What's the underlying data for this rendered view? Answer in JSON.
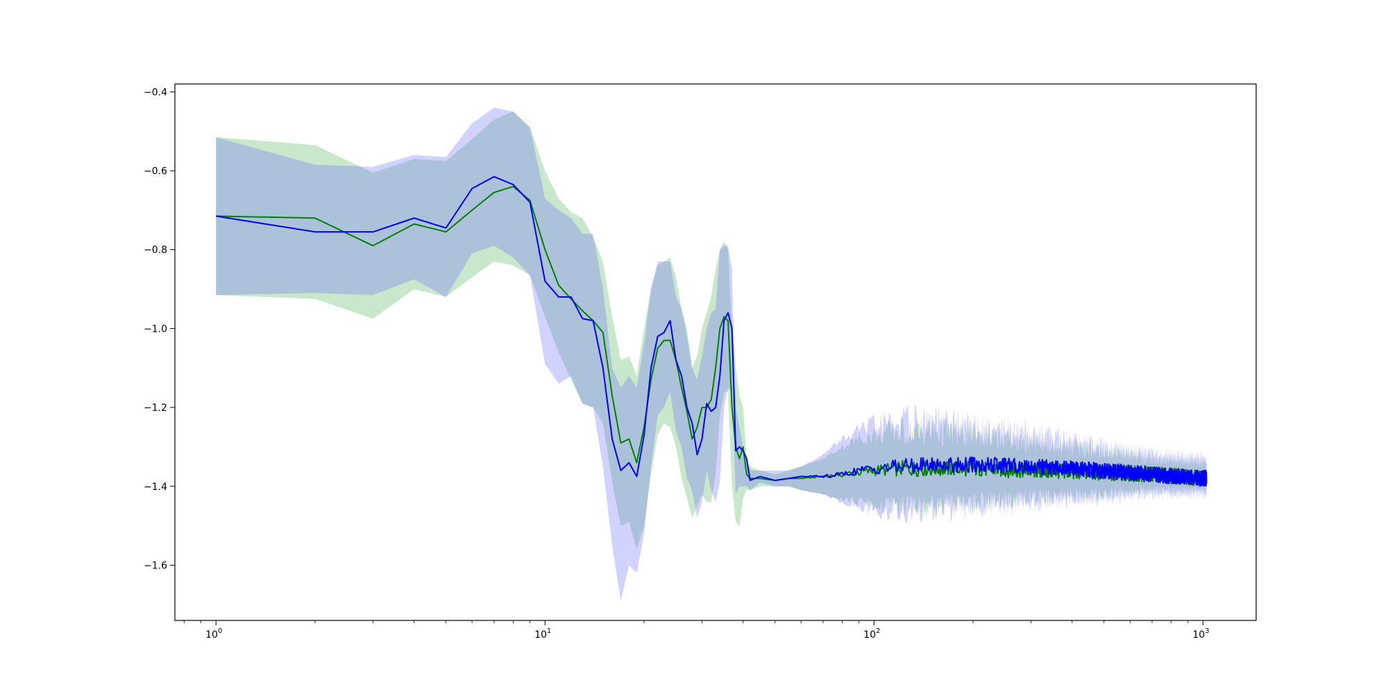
{
  "chart_data": {
    "type": "line",
    "title": "",
    "xlabel": "",
    "ylabel": "",
    "xscale": "log",
    "xlim": [
      0.75,
      1450
    ],
    "ylim": [
      -1.74,
      -0.38
    ],
    "grid": false,
    "legend": "none",
    "x_ticks": [
      {
        "base": "10",
        "exp": "0",
        "value": 1
      },
      {
        "base": "10",
        "exp": "1",
        "value": 10
      },
      {
        "base": "10",
        "exp": "2",
        "value": 100
      },
      {
        "base": "10",
        "exp": "3",
        "value": 1000
      }
    ],
    "y_ticks": [
      {
        "label": "−0.4",
        "value": -0.4
      },
      {
        "label": "−0.6",
        "value": -0.6
      },
      {
        "label": "−0.8",
        "value": -0.8
      },
      {
        "label": "−1.0",
        "value": -1.0
      },
      {
        "label": "−1.2",
        "value": -1.2
      },
      {
        "label": "−1.4",
        "value": -1.4
      },
      {
        "label": "−1.6",
        "value": -1.6
      }
    ],
    "series": [
      {
        "color": "#008000",
        "band_color": "#4caf50",
        "x": [
          1,
          2,
          3,
          4,
          5,
          6,
          7,
          8,
          9,
          10,
          11,
          12,
          13,
          14,
          15,
          16,
          17,
          18,
          19,
          20,
          21,
          22,
          23,
          24,
          25,
          26,
          27,
          28,
          29,
          30,
          31,
          32,
          33,
          34,
          35,
          36,
          37,
          38,
          39,
          40,
          41,
          42,
          45,
          50,
          55,
          60,
          70,
          80,
          90,
          100,
          120,
          150,
          200,
          300,
          500,
          700,
          1024
        ],
        "mean": [
          -0.715,
          -0.72,
          -0.79,
          -0.735,
          -0.755,
          -0.7,
          -0.655,
          -0.64,
          -0.675,
          -0.8,
          -0.89,
          -0.925,
          -0.955,
          -0.98,
          -1.01,
          -1.17,
          -1.29,
          -1.28,
          -1.34,
          -1.25,
          -1.13,
          -1.05,
          -1.03,
          -1.03,
          -1.08,
          -1.15,
          -1.21,
          -1.28,
          -1.25,
          -1.2,
          -1.2,
          -1.18,
          -1.1,
          -1.0,
          -0.97,
          -0.98,
          -1.2,
          -1.3,
          -1.33,
          -1.3,
          -1.37,
          -1.38,
          -1.38,
          -1.385,
          -1.38,
          -1.38,
          -1.375,
          -1.37,
          -1.365,
          -1.36,
          -1.355,
          -1.355,
          -1.355,
          -1.36,
          -1.365,
          -1.37,
          -1.38
        ],
        "upper": [
          -0.515,
          -0.535,
          -0.605,
          -0.57,
          -0.575,
          -0.52,
          -0.47,
          -0.45,
          -0.49,
          -0.6,
          -0.67,
          -0.705,
          -0.72,
          -0.77,
          -0.83,
          -0.97,
          -1.08,
          -1.07,
          -1.12,
          -1.0,
          -0.9,
          -0.84,
          -0.83,
          -0.82,
          -0.87,
          -0.95,
          -1.0,
          -1.1,
          -1.07,
          -1.0,
          -0.96,
          -0.92,
          -0.85,
          -0.8,
          -0.78,
          -0.8,
          -1.0,
          -1.1,
          -1.17,
          -1.2,
          -1.33,
          -1.35,
          -1.36,
          -1.37,
          -1.36,
          -1.35,
          -1.33,
          -1.3,
          -1.28,
          -1.27,
          -1.26,
          -1.26,
          -1.27,
          -1.29,
          -1.31,
          -1.33,
          -1.34
        ],
        "lower": [
          -0.915,
          -0.925,
          -0.975,
          -0.9,
          -0.92,
          -0.87,
          -0.83,
          -0.84,
          -0.865,
          -0.97,
          -1.06,
          -1.13,
          -1.19,
          -1.2,
          -1.24,
          -1.39,
          -1.5,
          -1.49,
          -1.56,
          -1.5,
          -1.37,
          -1.27,
          -1.24,
          -1.25,
          -1.3,
          -1.38,
          -1.43,
          -1.48,
          -1.45,
          -1.42,
          -1.44,
          -1.44,
          -1.37,
          -1.22,
          -1.16,
          -1.16,
          -1.4,
          -1.49,
          -1.5,
          -1.43,
          -1.41,
          -1.41,
          -1.4,
          -1.4,
          -1.4,
          -1.41,
          -1.42,
          -1.43,
          -1.44,
          -1.45,
          -1.45,
          -1.45,
          -1.44,
          -1.43,
          -1.42,
          -1.41,
          -1.41
        ]
      },
      {
        "color": "#0000ff",
        "band_color": "#6b6bff",
        "x": [
          1,
          2,
          3,
          4,
          5,
          6,
          7,
          8,
          9,
          10,
          11,
          12,
          13,
          14,
          15,
          16,
          17,
          18,
          19,
          20,
          21,
          22,
          23,
          24,
          25,
          26,
          27,
          28,
          29,
          30,
          31,
          32,
          33,
          34,
          35,
          36,
          37,
          38,
          39,
          40,
          41,
          42,
          45,
          50,
          55,
          60,
          70,
          80,
          90,
          100,
          120,
          150,
          200,
          300,
          500,
          700,
          1024
        ],
        "mean": [
          -0.715,
          -0.755,
          -0.755,
          -0.72,
          -0.745,
          -0.645,
          -0.615,
          -0.635,
          -0.68,
          -0.88,
          -0.92,
          -0.92,
          -0.975,
          -0.98,
          -1.1,
          -1.28,
          -1.36,
          -1.34,
          -1.375,
          -1.27,
          -1.1,
          -1.02,
          -1.01,
          -0.98,
          -1.08,
          -1.12,
          -1.2,
          -1.24,
          -1.32,
          -1.28,
          -1.19,
          -1.21,
          -1.2,
          -1.12,
          -0.98,
          -0.96,
          -1.0,
          -1.31,
          -1.3,
          -1.31,
          -1.33,
          -1.385,
          -1.375,
          -1.385,
          -1.38,
          -1.375,
          -1.375,
          -1.37,
          -1.36,
          -1.355,
          -1.35,
          -1.345,
          -1.345,
          -1.35,
          -1.36,
          -1.37,
          -1.38
        ],
        "upper": [
          -0.515,
          -0.585,
          -0.59,
          -0.56,
          -0.565,
          -0.48,
          -0.44,
          -0.45,
          -0.49,
          -0.67,
          -0.7,
          -0.72,
          -0.76,
          -0.76,
          -0.9,
          -1.1,
          -1.15,
          -1.12,
          -1.15,
          -1.04,
          -0.9,
          -0.83,
          -0.83,
          -0.83,
          -0.92,
          -0.95,
          -1.02,
          -1.1,
          -1.13,
          -1.07,
          -1.0,
          -0.96,
          -0.95,
          -0.8,
          -0.79,
          -0.79,
          -0.85,
          -1.2,
          -1.25,
          -1.3,
          -1.33,
          -1.36,
          -1.36,
          -1.36,
          -1.36,
          -1.35,
          -1.32,
          -1.28,
          -1.26,
          -1.25,
          -1.24,
          -1.24,
          -1.25,
          -1.27,
          -1.3,
          -1.32,
          -1.33
        ],
        "lower": [
          -0.915,
          -0.91,
          -0.915,
          -0.875,
          -0.92,
          -0.81,
          -0.79,
          -0.82,
          -0.865,
          -1.09,
          -1.14,
          -1.12,
          -1.19,
          -1.2,
          -1.35,
          -1.55,
          -1.69,
          -1.6,
          -1.62,
          -1.52,
          -1.35,
          -1.22,
          -1.2,
          -1.16,
          -1.26,
          -1.3,
          -1.38,
          -1.41,
          -1.48,
          -1.44,
          -1.36,
          -1.41,
          -1.44,
          -1.39,
          -1.2,
          -1.15,
          -1.16,
          -1.42,
          -1.4,
          -1.4,
          -1.4,
          -1.41,
          -1.39,
          -1.4,
          -1.4,
          -1.41,
          -1.42,
          -1.44,
          -1.45,
          -1.46,
          -1.46,
          -1.46,
          -1.45,
          -1.44,
          -1.43,
          -1.42,
          -1.42
        ]
      }
    ]
  }
}
